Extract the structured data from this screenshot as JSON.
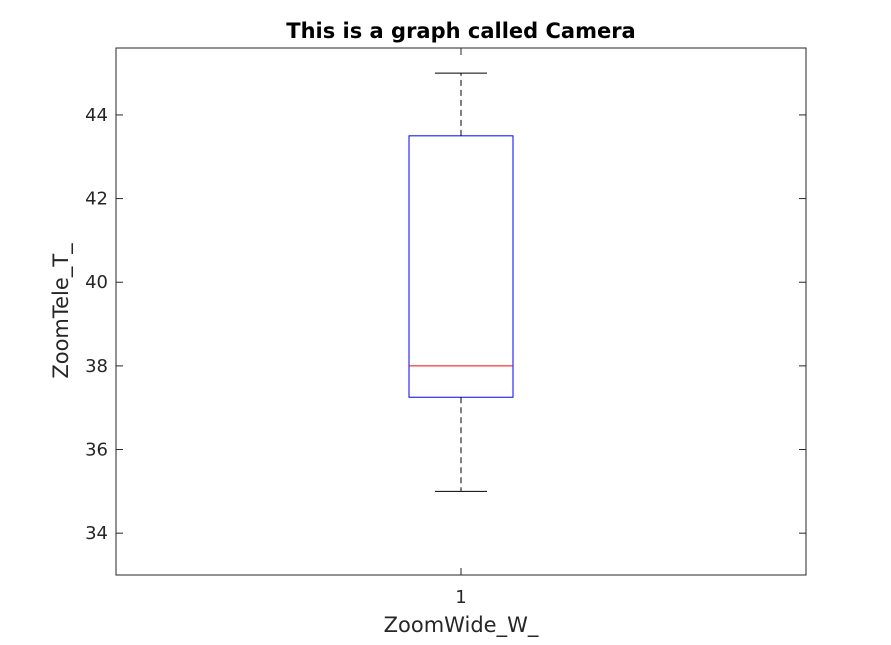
{
  "chart_data": {
    "type": "box",
    "title": "This is a graph called Camera",
    "xlabel": "ZoomWide_W_",
    "ylabel": "ZoomTele_T_",
    "categories": [
      "1"
    ],
    "ylim": [
      33,
      45.6
    ],
    "yticks": [
      34,
      36,
      38,
      40,
      42,
      44
    ],
    "ytick_labels": [
      "34",
      "36",
      "38",
      "40",
      "42",
      "44"
    ],
    "boxes": [
      {
        "category": "1",
        "whisker_low": 35,
        "q1": 37.25,
        "median": 38,
        "q3": 43.5,
        "whisker_high": 45
      }
    ],
    "grid": false,
    "colors": {
      "box": "#0000ff",
      "median": "#ff0000",
      "whisker": "#000000",
      "axes": "#262626"
    }
  }
}
